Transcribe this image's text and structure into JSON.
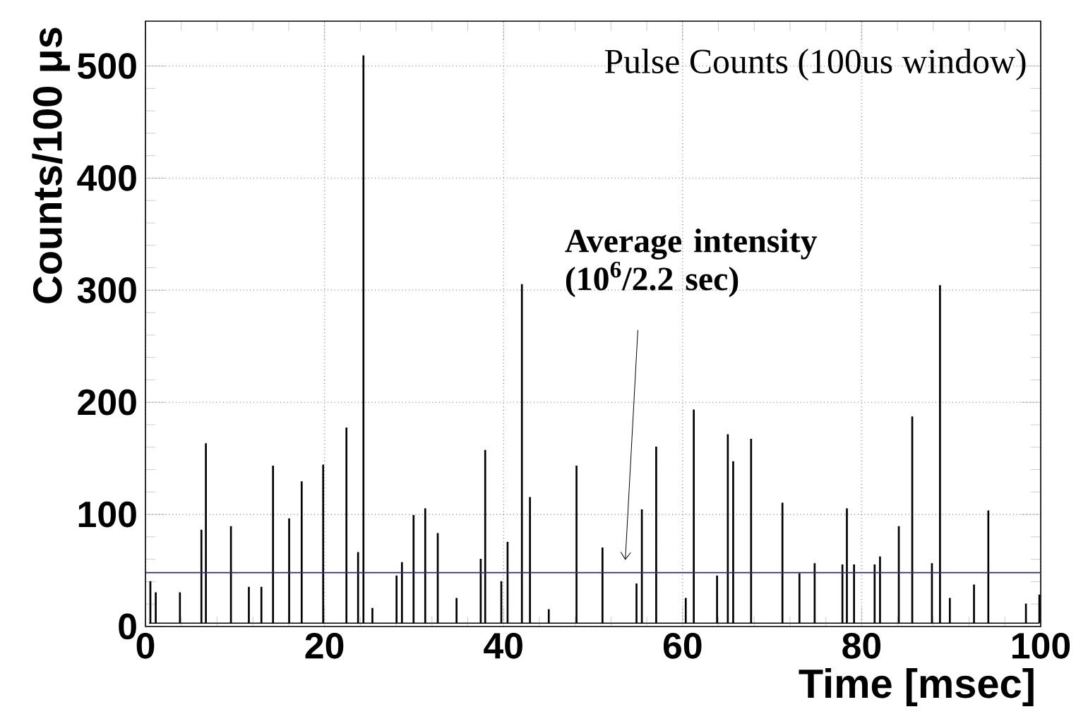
{
  "chart_data": {
    "type": "step",
    "title": "Pulse Counts (100us window)",
    "xlabel": "Time [msec]",
    "ylabel": "Counts/100 μs",
    "x": [
      0.4,
      0.5,
      0.6,
      1.0,
      1.1,
      1.2,
      3.7,
      3.8,
      3.9,
      6.1,
      6.2,
      6.3,
      6.6,
      6.7,
      6.8,
      9.4,
      9.5,
      9.6,
      11.4,
      11.5,
      11.6,
      12.8,
      12.9,
      13.0,
      14.1,
      14.2,
      14.3,
      15.9,
      16.0,
      16.1,
      17.3,
      17.4,
      17.5,
      19.7,
      19.8,
      19.9,
      22.3,
      22.4,
      22.5,
      23.6,
      23.7,
      23.8,
      24.2,
      24.3,
      24.4,
      25.2,
      25.3,
      25.4,
      27.9,
      28.0,
      28.1,
      28.5,
      28.6,
      28.7,
      29.8,
      29.9,
      30.0,
      31.1,
      31.2,
      31.3,
      32.5,
      32.6,
      32.7,
      34.6,
      34.7,
      34.8,
      37.3,
      37.4,
      37.5,
      37.8,
      37.9,
      38.0,
      39.6,
      39.7,
      39.8,
      40.3,
      40.4,
      40.5,
      41.9,
      42.0,
      42.1,
      42.8,
      42.9,
      43.0,
      44.9,
      45.0,
      45.1,
      48.0,
      48.1,
      48.2,
      50.9,
      51.0,
      51.1,
      54.7,
      54.8,
      54.9,
      55.3,
      55.4,
      55.5,
      56.9,
      57.0,
      57.1,
      60.2,
      60.3,
      60.4,
      61.1,
      61.2,
      61.3,
      63.7,
      63.8,
      63.9,
      64.9,
      65.0,
      65.1,
      65.5,
      65.6,
      65.7,
      67.5,
      67.6,
      67.7,
      71.0,
      71.1,
      71.2,
      72.9,
      73.0,
      73.1,
      74.6,
      74.7,
      74.8,
      77.7,
      77.8,
      77.9,
      78.2,
      78.3,
      78.4,
      79.0,
      79.1,
      79.2,
      81.3,
      81.4,
      81.5,
      81.9,
      82.0,
      82.1,
      84.0,
      84.1,
      84.2,
      85.5,
      85.6,
      85.7,
      87.7,
      87.8,
      87.9,
      88.6,
      88.7,
      88.8,
      89.7,
      89.8,
      89.9,
      92.4,
      92.5,
      92.6,
      94.0,
      94.1,
      94.2,
      98.2,
      98.3,
      98.4,
      99.7,
      99.8,
      99.9
    ],
    "values": [
      3,
      40,
      3,
      3,
      30,
      3,
      3,
      30,
      3,
      3,
      86,
      3,
      3,
      163,
      3,
      3,
      89,
      3,
      3,
      35,
      3,
      3,
      35,
      3,
      3,
      143,
      3,
      3,
      96,
      3,
      3,
      129,
      3,
      3,
      144,
      3,
      3,
      177,
      3,
      3,
      66,
      3,
      3,
      509,
      3,
      3,
      16,
      3,
      3,
      45,
      3,
      3,
      57,
      3,
      3,
      99,
      3,
      3,
      105,
      3,
      3,
      83,
      3,
      3,
      25,
      3,
      3,
      60,
      3,
      3,
      157,
      3,
      3,
      40,
      3,
      3,
      75,
      3,
      3,
      305,
      3,
      3,
      115,
      3,
      3,
      15,
      3,
      3,
      143,
      3,
      3,
      70,
      3,
      3,
      38,
      3,
      3,
      104,
      3,
      3,
      160,
      3,
      3,
      25,
      3,
      3,
      193,
      3,
      3,
      45,
      3,
      3,
      171,
      3,
      3,
      147,
      3,
      3,
      167,
      3,
      3,
      110,
      3,
      3,
      47,
      3,
      3,
      56,
      3,
      3,
      55,
      3,
      3,
      105,
      3,
      3,
      55,
      3,
      3,
      55,
      3,
      3,
      62,
      3,
      3,
      89,
      3,
      3,
      187,
      3,
      3,
      56,
      3,
      3,
      304,
      3,
      3,
      25,
      3,
      3,
      37,
      3,
      3,
      103,
      3,
      3,
      20,
      3,
      3,
      28,
      3
    ],
    "color": "#000000",
    "xlim": [
      0,
      100
    ],
    "ylim": [
      0,
      540
    ],
    "xticks": [
      0,
      20,
      40,
      60,
      80,
      100
    ],
    "yticks": [
      0,
      100,
      200,
      300,
      400,
      500
    ],
    "grid": true,
    "ref_lines": [
      {
        "axis": "y",
        "value": 48,
        "color": "#2b2b9b"
      }
    ],
    "annotations": [
      "Average intensity (10$^{6}$/2.2 sec)"
    ]
  }
}
